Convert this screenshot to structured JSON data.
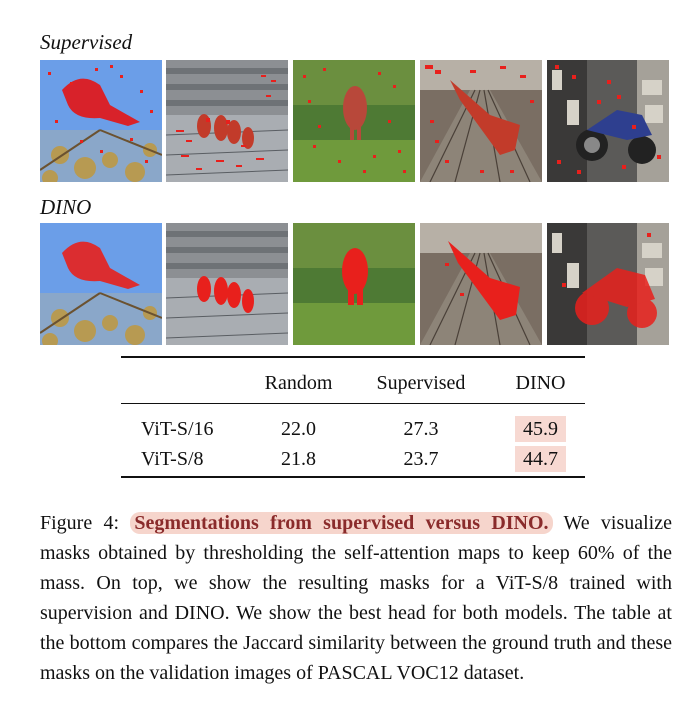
{
  "labels": {
    "supervised": "Supervised",
    "dino": "DINO"
  },
  "table": {
    "headers": [
      "",
      "Random",
      "Supervised",
      "DINO"
    ],
    "rows": [
      {
        "name": "ViT-S/16",
        "random": "22.0",
        "supervised": "27.3",
        "dino": "45.9"
      },
      {
        "name": "ViT-S/8",
        "random": "21.8",
        "supervised": "23.7",
        "dino": "44.7"
      }
    ],
    "highlight_color": "#f7d9d2"
  },
  "caption": {
    "prefix": "Figure 4:",
    "bold": "Segmentations from supervised versus DINO.",
    "body": "We visualize masks obtained by thresholding the self-attention maps to keep 60% of the mass. On top, we show the resulting masks for a ViT-S/8 trained with supervision and DINO. We show the best head for both models. The table at the bottom compares the Jaccard similarity between the ground truth and these masks on the validation images of PASCAL VOC12 dataset."
  },
  "images": [
    "bird",
    "ducks",
    "elephant",
    "train",
    "motorcycle"
  ],
  "mask_color": "#e8201c"
}
